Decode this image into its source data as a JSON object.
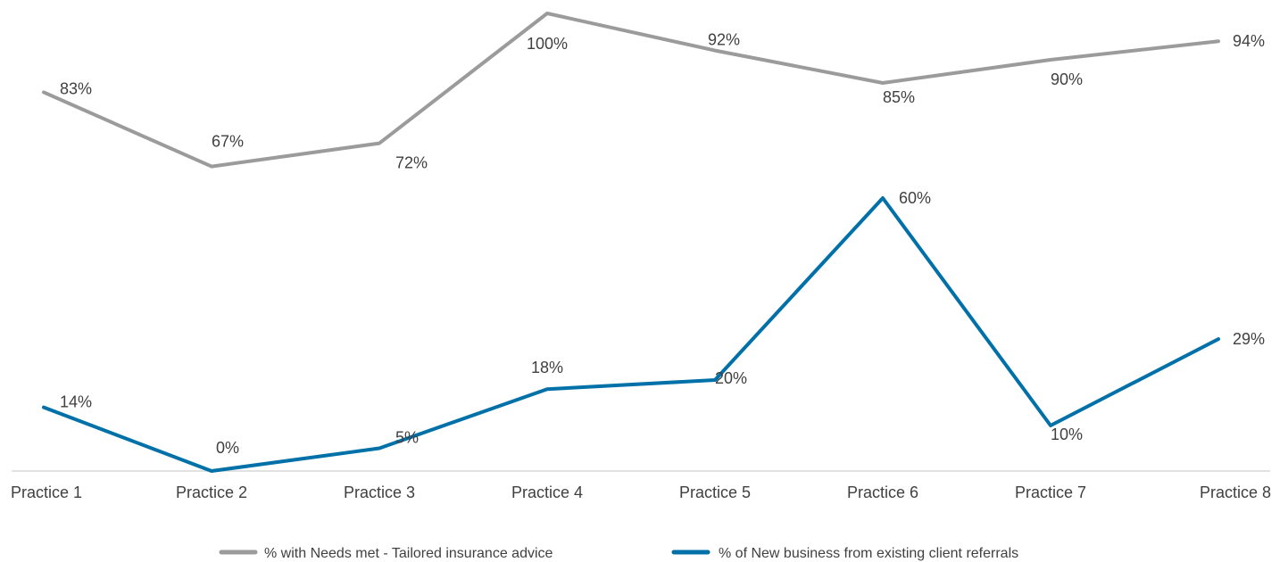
{
  "chart_data": {
    "type": "line",
    "categories": [
      "Practice 1",
      "Practice 2",
      "Practice 3",
      "Practice 4",
      "Practice 5",
      "Practice 6",
      "Practice 7",
      "Practice 8"
    ],
    "series": [
      {
        "name": "% with Needs met - Tailored insurance advice",
        "values": [
          83,
          67,
          72,
          100,
          92,
          85,
          90,
          94
        ],
        "labels": [
          "83%",
          "67%",
          "72%",
          "100%",
          "92%",
          "85%",
          "90%",
          "94%"
        ],
        "color": "#9b9b9b"
      },
      {
        "name": "% of New business from existing client referrals",
        "values": [
          14,
          0,
          5,
          18,
          20,
          60,
          10,
          29
        ],
        "labels": [
          "14%",
          "0%",
          "5%",
          "18%",
          "20%",
          "60%",
          "10%",
          "29%"
        ],
        "color": "#0070a8"
      }
    ],
    "ylim": [
      0,
      100
    ],
    "grid": false,
    "legend_position": "bottom",
    "axis_color": "#d9d9d9"
  }
}
